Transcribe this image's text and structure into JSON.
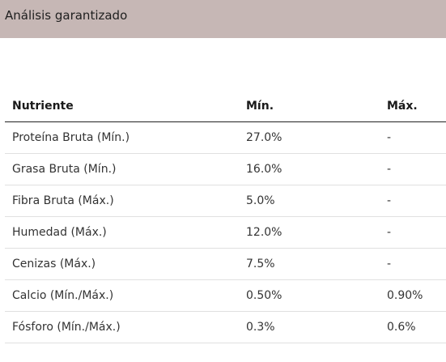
{
  "header": {
    "title": "Análisis garantizado"
  },
  "table": {
    "columns": [
      "Nutriente",
      "Mín.",
      "Máx."
    ],
    "rows": [
      [
        "Proteína Bruta (Mín.)",
        "27.0%",
        "-"
      ],
      [
        "Grasa Bruta (Mín.)",
        "16.0%",
        "-"
      ],
      [
        "Fibra Bruta (Máx.)",
        "5.0%",
        "-"
      ],
      [
        "Humedad (Máx.)",
        "12.0%",
        "-"
      ],
      [
        "Cenizas (Máx.)",
        "7.5%",
        "-"
      ],
      [
        "Calcio (Mín./Máx.)",
        "0.50%",
        "0.90%"
      ],
      [
        "Fósforo (Mín./Máx.)",
        "0.3%",
        "0.6%"
      ]
    ]
  },
  "colors": {
    "header_bg": "#c6b7b5",
    "text": "#333333",
    "row_divider": "#e0e0e0"
  }
}
